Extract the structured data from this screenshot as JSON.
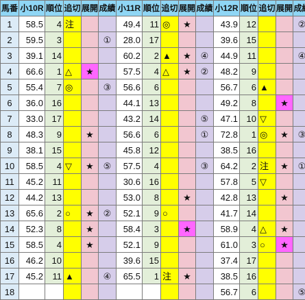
{
  "headers": [
    "馬番",
    "小10R",
    "順位",
    "追切",
    "展開",
    "成績",
    "小11R",
    "順位",
    "追切",
    "展開",
    "成績",
    "小12R",
    "順位",
    "追切",
    "展開",
    "成績"
  ],
  "rows": [
    {
      "num": "1",
      "r10": [
        "58.5",
        "4",
        "注",
        "",
        ""
      ],
      "r11": [
        "49.4",
        "11",
        "◎",
        "★",
        ""
      ],
      "r12": [
        "43.9",
        "12",
        "",
        "",
        "②"
      ]
    },
    {
      "num": "2",
      "r10": [
        "59.5",
        "3",
        "",
        "",
        "①"
      ],
      "r11": [
        "28.0",
        "17",
        "",
        "",
        ""
      ],
      "r12": [
        "39.6",
        "15",
        "",
        "",
        ""
      ]
    },
    {
      "num": "3",
      "r10": [
        "39.1",
        "14",
        "",
        "",
        ""
      ],
      "r11": [
        "60.2",
        "2",
        "▲",
        "★",
        "④"
      ],
      "r12": [
        "44.9",
        "11",
        "",
        "",
        "④"
      ]
    },
    {
      "num": "4",
      "r10": [
        "66.6",
        "1",
        "△",
        "★",
        ""
      ],
      "r11": [
        "57.5",
        "4",
        "△",
        "★",
        "②"
      ],
      "r12": [
        "48.2",
        "9",
        "",
        "",
        ""
      ]
    },
    {
      "num": "5",
      "r10": [
        "55.4",
        "7",
        "◎",
        "",
        "③"
      ],
      "r11": [
        "56.6",
        "6",
        "",
        "",
        ""
      ],
      "r12": [
        "56.7",
        "6",
        "▲",
        "",
        ""
      ]
    },
    {
      "num": "6",
      "r10": [
        "36.0",
        "16",
        "",
        "",
        ""
      ],
      "r11": [
        "44.1",
        "13",
        "",
        "",
        ""
      ],
      "r12": [
        "49.2",
        "8",
        "",
        "★",
        ""
      ]
    },
    {
      "num": "7",
      "r10": [
        "33.0",
        "17",
        "",
        "",
        ""
      ],
      "r11": [
        "43.2",
        "14",
        "",
        "",
        "⑤"
      ],
      "r12": [
        "47.1",
        "10",
        "▽",
        "",
        ""
      ]
    },
    {
      "num": "8",
      "r10": [
        "48.3",
        "9",
        "",
        "★",
        ""
      ],
      "r11": [
        "56.6",
        "6",
        "",
        "",
        "①"
      ],
      "r12": [
        "72.8",
        "1",
        "◎",
        "★",
        "③"
      ]
    },
    {
      "num": "9",
      "r10": [
        "38.1",
        "15",
        "",
        "",
        ""
      ],
      "r11": [
        "45.8",
        "12",
        "",
        "",
        ""
      ],
      "r12": [
        "38.5",
        "16",
        "",
        "",
        ""
      ]
    },
    {
      "num": "10",
      "r10": [
        "58.5",
        "4",
        "▽",
        "★",
        "⑤"
      ],
      "r11": [
        "57.5",
        "4",
        "",
        "",
        "③"
      ],
      "r12": [
        "64.2",
        "2",
        "注",
        "★",
        "①"
      ]
    },
    {
      "num": "11",
      "r10": [
        "45.2",
        "11",
        "",
        "",
        ""
      ],
      "r11": [
        "30.6",
        "16",
        "",
        "",
        ""
      ],
      "r12": [
        "57.8",
        "5",
        "▽",
        "",
        ""
      ]
    },
    {
      "num": "12",
      "r10": [
        "44.2",
        "13",
        "",
        "",
        ""
      ],
      "r11": [
        "53.0",
        "8",
        "",
        "★",
        ""
      ],
      "r12": [
        "42.8",
        "13",
        "",
        "★",
        ""
      ]
    },
    {
      "num": "13",
      "r10": [
        "65.6",
        "2",
        "○",
        "★",
        "②"
      ],
      "r11": [
        "52.1",
        "9",
        "○",
        "",
        ""
      ],
      "r12": [
        "41.7",
        "14",
        "",
        "",
        ""
      ]
    },
    {
      "num": "14",
      "r10": [
        "52.3",
        "8",
        "",
        "★",
        ""
      ],
      "r11": [
        "58.4",
        "3",
        "",
        "★",
        ""
      ],
      "r12": [
        "58.9",
        "4",
        "△",
        "★",
        ""
      ]
    },
    {
      "num": "15",
      "r10": [
        "58.5",
        "4",
        "",
        "★",
        ""
      ],
      "r11": [
        "52.1",
        "9",
        "",
        "",
        ""
      ],
      "r12": [
        "61.0",
        "3",
        "○",
        "★",
        ""
      ]
    },
    {
      "num": "16",
      "r10": [
        "46.2",
        "10",
        "",
        "",
        ""
      ],
      "r11": [
        "39.6",
        "15",
        "",
        "",
        ""
      ],
      "r12": [
        "37.4",
        "17",
        "",
        "",
        ""
      ]
    },
    {
      "num": "17",
      "r10": [
        "45.2",
        "11",
        "▲",
        "",
        "④"
      ],
      "r11": [
        "65.5",
        "1",
        "注",
        "★",
        ""
      ],
      "r12": [
        "38.5",
        "16",
        "",
        "",
        ""
      ]
    },
    {
      "num": "18",
      "r10": [
        "",
        "",
        "",
        "",
        ""
      ],
      "r11": [
        "",
        "",
        "",
        "",
        ""
      ],
      "r12": [
        "56.7",
        "6",
        "",
        "",
        "⑤"
      ]
    }
  ],
  "highlighted_tenkai": [
    {
      "row": 4,
      "race": "r10"
    },
    {
      "row": 14,
      "race": "r11"
    },
    {
      "row": 6,
      "race": "r12"
    },
    {
      "row": 15,
      "race": "r12"
    }
  ],
  "colors": {
    "header": "#8fd6f5",
    "horse_number": "#dcebf7",
    "rank": "#e3efd9",
    "oikiri": "#ffff00",
    "tenkai": "#f2c6d0",
    "tenkai_highlight": "#ff66ff",
    "seiseki": "#d6cdea"
  }
}
